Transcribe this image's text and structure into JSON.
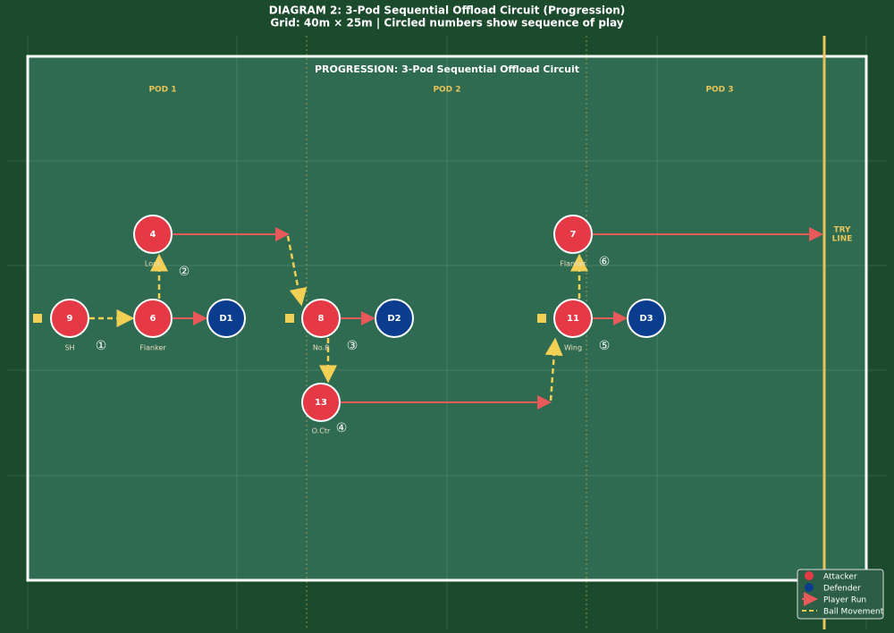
{
  "header": {
    "title": "DIAGRAM 2: 3-Pod Sequential Offload Circuit (Progression)",
    "subtitle": "Grid: 40m × 25m | Circled numbers show sequence of play"
  },
  "field": {
    "title": "PROGRESSION: 3-Pod Sequential Offload Circuit",
    "pods": [
      "POD 1",
      "POD 2",
      "POD 3"
    ],
    "try_line": [
      "TRY",
      "LINE"
    ]
  },
  "attackers": [
    {
      "number": "9",
      "role": "SH"
    },
    {
      "number": "6",
      "role": "Flanker"
    },
    {
      "number": "4",
      "role": "Lock"
    },
    {
      "number": "8",
      "role": "No.8"
    },
    {
      "number": "13",
      "role": "O.Ctr"
    },
    {
      "number": "11",
      "role": "Wing"
    },
    {
      "number": "7",
      "role": "Flanker"
    }
  ],
  "defenders": [
    "D1",
    "D2",
    "D3"
  ],
  "sequence": [
    "①",
    "②",
    "③",
    "④",
    "⑤",
    "⑥"
  ],
  "legend": [
    "Attacker",
    "Defender",
    "Player Run",
    "Ball Movement"
  ]
}
